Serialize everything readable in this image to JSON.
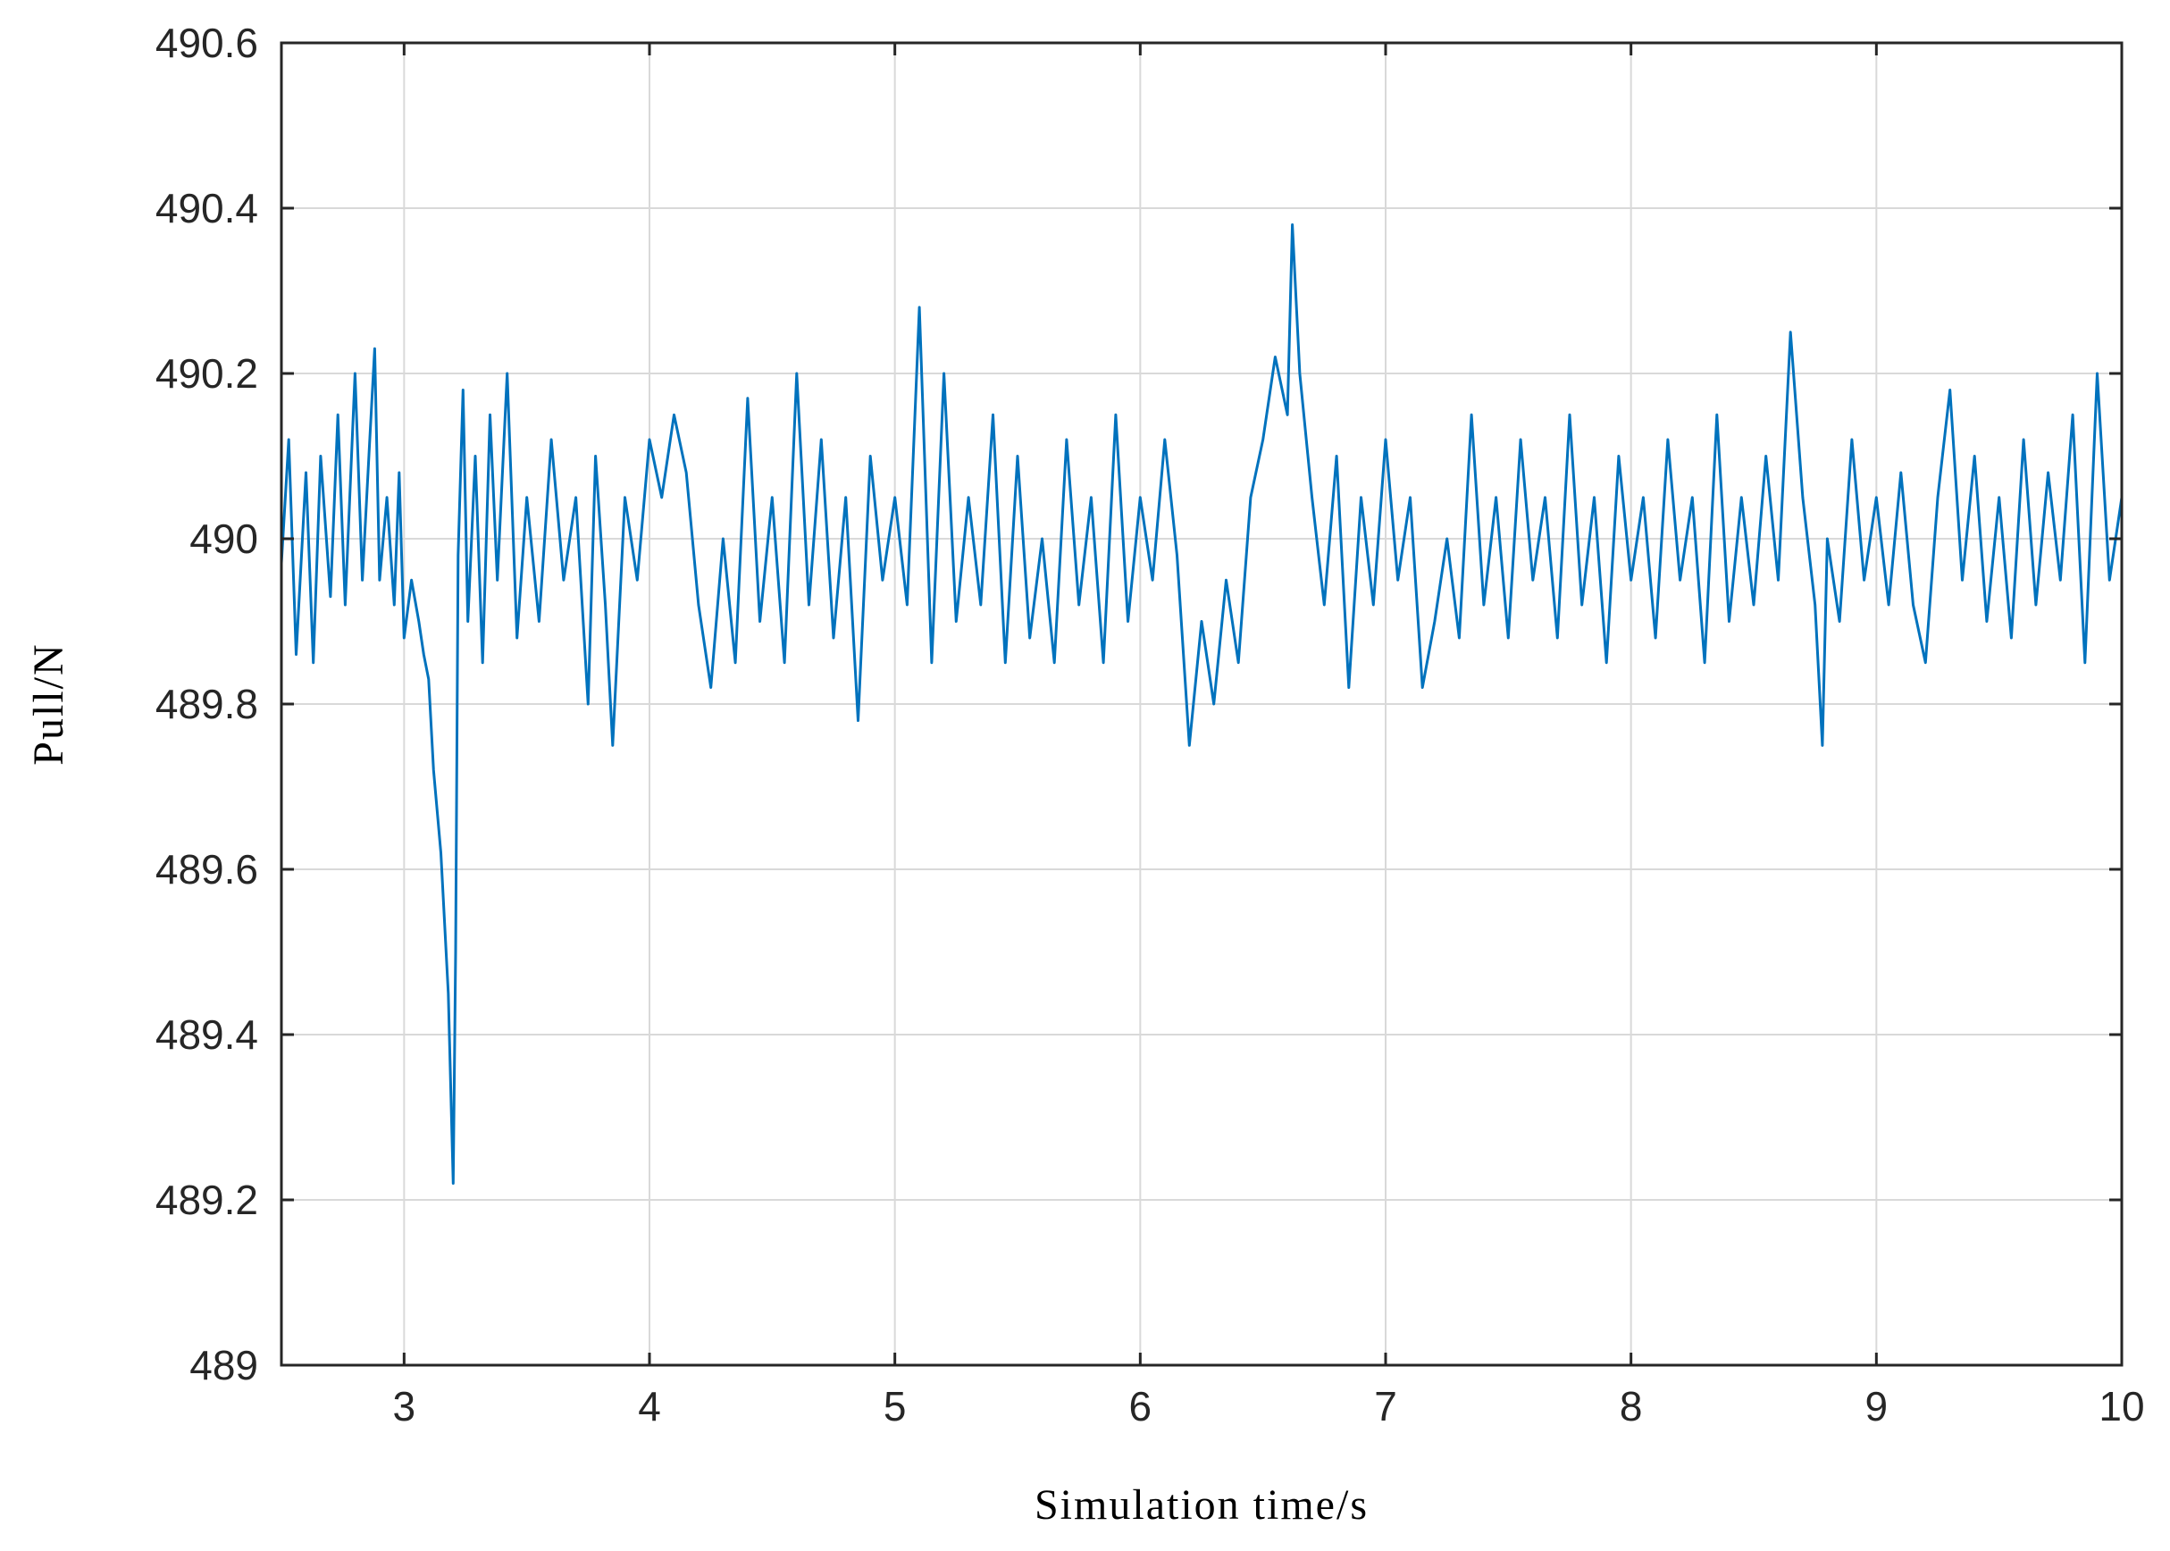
{
  "chart_data": {
    "type": "line",
    "xlabel": "Simulation time/s",
    "ylabel": "Pull/N",
    "xlim": [
      2.5,
      10
    ],
    "ylim": [
      489,
      490.6
    ],
    "xticks": [
      3,
      4,
      5,
      6,
      7,
      8,
      9,
      10
    ],
    "yticks": [
      489,
      489.2,
      489.4,
      489.6,
      489.8,
      490,
      490.2,
      490.4,
      490.6
    ],
    "ytick_labels": [
      "489",
      "489.2",
      "489.4",
      "489.6",
      "489.8",
      "490",
      "490.2",
      "490.4",
      "490.6"
    ],
    "grid": true,
    "colors": {
      "line": "#0072BD",
      "grid": "#d9d9d9",
      "axis": "#262626"
    },
    "series": [
      {
        "values_x": [
          2.5,
          2.53,
          2.56,
          2.6,
          2.63,
          2.66,
          2.7,
          2.73,
          2.76,
          2.8,
          2.83,
          2.86,
          2.88,
          2.9,
          2.93,
          2.96,
          2.98,
          3.0,
          3.03,
          3.06,
          3.08,
          3.1,
          3.12,
          3.15,
          3.18,
          3.2,
          3.21,
          3.22,
          3.24,
          3.26,
          3.29,
          3.32,
          3.35,
          3.38,
          3.42,
          3.46,
          3.5,
          3.55,
          3.6,
          3.65,
          3.7,
          3.75,
          3.78,
          3.82,
          3.85,
          3.9,
          3.95,
          4.0,
          4.05,
          4.1,
          4.15,
          4.2,
          4.25,
          4.3,
          4.35,
          4.4,
          4.45,
          4.5,
          4.55,
          4.6,
          4.65,
          4.7,
          4.75,
          4.8,
          4.85,
          4.9,
          4.95,
          5.0,
          5.05,
          5.1,
          5.15,
          5.2,
          5.25,
          5.3,
          5.35,
          5.4,
          5.45,
          5.5,
          5.55,
          5.6,
          5.65,
          5.7,
          5.75,
          5.8,
          5.85,
          5.9,
          5.95,
          6.0,
          6.05,
          6.1,
          6.15,
          6.2,
          6.25,
          6.3,
          6.35,
          6.4,
          6.45,
          6.5,
          6.55,
          6.6,
          6.62,
          6.65,
          6.7,
          6.75,
          6.8,
          6.85,
          6.9,
          6.95,
          7.0,
          7.05,
          7.1,
          7.15,
          7.2,
          7.25,
          7.3,
          7.35,
          7.4,
          7.45,
          7.5,
          7.55,
          7.6,
          7.65,
          7.7,
          7.75,
          7.8,
          7.85,
          7.9,
          7.95,
          8.0,
          8.05,
          8.1,
          8.15,
          8.2,
          8.25,
          8.3,
          8.35,
          8.4,
          8.45,
          8.5,
          8.55,
          8.6,
          8.65,
          8.7,
          8.75,
          8.78,
          8.8,
          8.85,
          8.9,
          8.95,
          9.0,
          9.05,
          9.1,
          9.15,
          9.2,
          9.25,
          9.3,
          9.35,
          9.4,
          9.45,
          9.5,
          9.55,
          9.6,
          9.65,
          9.7,
          9.75,
          9.8,
          9.85,
          9.9,
          9.95,
          10.0
        ],
        "values_y": [
          489.97,
          490.12,
          489.86,
          490.08,
          489.85,
          490.1,
          489.93,
          490.15,
          489.92,
          490.2,
          489.95,
          490.12,
          490.23,
          489.95,
          490.05,
          489.92,
          490.08,
          489.88,
          489.95,
          489.9,
          489.86,
          489.83,
          489.72,
          489.62,
          489.45,
          489.22,
          489.5,
          489.98,
          490.18,
          489.9,
          490.1,
          489.85,
          490.15,
          489.95,
          490.2,
          489.88,
          490.05,
          489.9,
          490.12,
          489.95,
          490.05,
          489.8,
          490.1,
          489.92,
          489.75,
          490.05,
          489.95,
          490.12,
          490.05,
          490.15,
          490.08,
          489.92,
          489.82,
          490.0,
          489.85,
          490.17,
          489.9,
          490.05,
          489.85,
          490.2,
          489.92,
          490.12,
          489.88,
          490.05,
          489.78,
          490.1,
          489.95,
          490.05,
          489.92,
          490.28,
          489.85,
          490.2,
          489.9,
          490.05,
          489.92,
          490.15,
          489.85,
          490.1,
          489.88,
          490.0,
          489.85,
          490.12,
          489.92,
          490.05,
          489.85,
          490.15,
          489.9,
          490.05,
          489.95,
          490.12,
          489.98,
          489.75,
          489.9,
          489.8,
          489.95,
          489.85,
          490.05,
          490.12,
          490.22,
          490.15,
          490.38,
          490.2,
          490.05,
          489.92,
          490.1,
          489.82,
          490.05,
          489.92,
          490.12,
          489.95,
          490.05,
          489.82,
          489.9,
          490.0,
          489.88,
          490.15,
          489.92,
          490.05,
          489.88,
          490.12,
          489.95,
          490.05,
          489.88,
          490.15,
          489.92,
          490.05,
          489.85,
          490.1,
          489.95,
          490.05,
          489.88,
          490.12,
          489.95,
          490.05,
          489.85,
          490.15,
          489.9,
          490.05,
          489.92,
          490.1,
          489.95,
          490.25,
          490.05,
          489.92,
          489.75,
          490.0,
          489.9,
          490.12,
          489.95,
          490.05,
          489.92,
          490.08,
          489.92,
          489.85,
          490.05,
          490.18,
          489.95,
          490.1,
          489.9,
          490.05,
          489.88,
          490.12,
          489.92,
          490.08,
          489.95,
          490.15,
          489.85,
          490.2,
          489.95,
          490.05
        ]
      }
    ]
  }
}
